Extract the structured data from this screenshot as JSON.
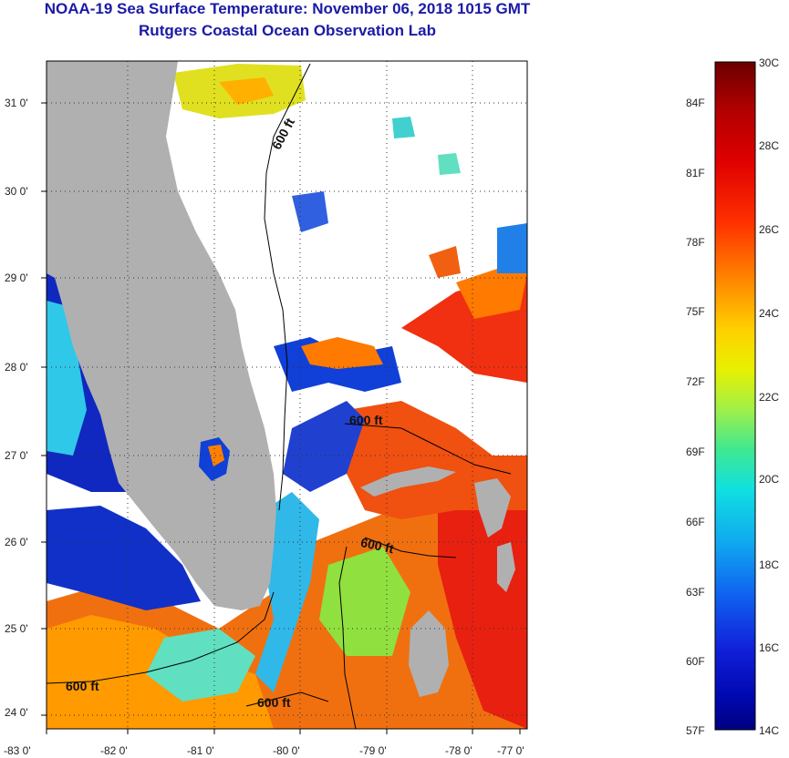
{
  "header": {
    "title": "NOAA-19 Sea Surface Temperature:  November 06, 2018 1015 GMT",
    "subtitle": "Rutgers Coastal Ocean Observation Lab"
  },
  "map": {
    "lon_ticks": [
      "-83 0'",
      "-82 0'",
      "-81 0'",
      "-80 0'",
      "-79 0'",
      "-78 0'",
      "-77 0'"
    ],
    "lat_ticks": [
      "31 0'",
      "30 0'",
      "29 0'",
      "28 0'",
      "27 0'",
      "26 0'",
      "25 0'",
      "24 0'"
    ],
    "contour_label": "600 ft",
    "land_color": "#b0b0b0",
    "cloud_color": "#ffffff"
  },
  "colorbar": {
    "celsius_labels": [
      "30C",
      "28C",
      "26C",
      "24C",
      "22C",
      "20C",
      "18C",
      "16C",
      "14C"
    ],
    "fahrenheit_labels": [
      "84F",
      "81F",
      "78F",
      "75F",
      "72F",
      "69F",
      "66F",
      "63F",
      "60F",
      "57F"
    ],
    "colors": [
      "#6b0000",
      "#b00000",
      "#e00000",
      "#ff3000",
      "#ff7a00",
      "#ffb000",
      "#ffe000",
      "#d8f000",
      "#9cf04a",
      "#40e890",
      "#10e0e0",
      "#10b0f0",
      "#1070f0",
      "#1030e0",
      "#0010b8",
      "#000080"
    ]
  }
}
